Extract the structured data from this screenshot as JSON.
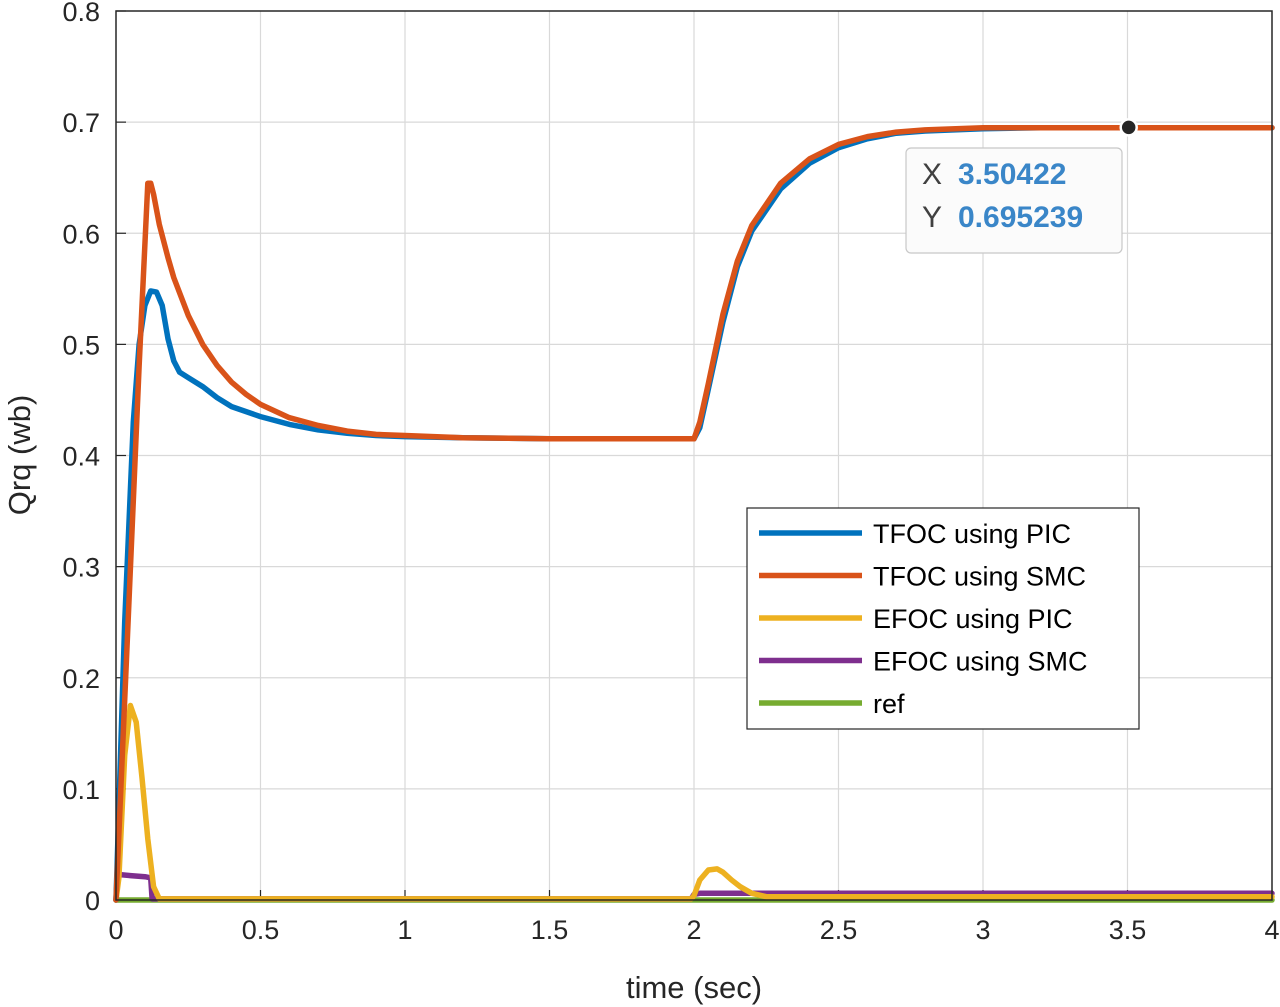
{
  "chart_data": {
    "type": "line",
    "title": "",
    "xlabel": "time (sec)",
    "ylabel": "Qrq (wb)",
    "xlim": [
      0,
      4
    ],
    "ylim": [
      0,
      0.8
    ],
    "xticks": [
      0,
      0.5,
      1,
      1.5,
      2,
      2.5,
      3,
      3.5,
      4
    ],
    "xtick_labels": [
      "0",
      "0.5",
      "1",
      "1.5",
      "2",
      "2.5",
      "3",
      "3.5",
      "4"
    ],
    "yticks": [
      0,
      0.1,
      0.2,
      0.3,
      0.4,
      0.5,
      0.6,
      0.7,
      0.8
    ],
    "ytick_labels": [
      "0",
      "0.1",
      "0.2",
      "0.3",
      "0.4",
      "0.5",
      "0.6",
      "0.7",
      "0.8"
    ],
    "grid": true,
    "legend_position": "center-right",
    "series": [
      {
        "name": "TFOC using PIC",
        "color": "#0072bd",
        "x": [
          0,
          0.03,
          0.06,
          0.08,
          0.1,
          0.12,
          0.14,
          0.16,
          0.18,
          0.2,
          0.22,
          0.25,
          0.3,
          0.35,
          0.4,
          0.5,
          0.6,
          0.7,
          0.8,
          0.9,
          1.0,
          1.2,
          1.5,
          1.8,
          2.0,
          2.02,
          2.05,
          2.1,
          2.15,
          2.2,
          2.3,
          2.4,
          2.5,
          2.6,
          2.7,
          2.8,
          3.0,
          3.2,
          3.5,
          3.8,
          4.0
        ],
        "y": [
          0,
          0.25,
          0.43,
          0.5,
          0.535,
          0.548,
          0.547,
          0.535,
          0.505,
          0.485,
          0.475,
          0.47,
          0.462,
          0.452,
          0.444,
          0.435,
          0.428,
          0.423,
          0.42,
          0.418,
          0.417,
          0.416,
          0.415,
          0.415,
          0.415,
          0.425,
          0.46,
          0.52,
          0.57,
          0.602,
          0.64,
          0.663,
          0.677,
          0.685,
          0.69,
          0.692,
          0.694,
          0.695,
          0.695,
          0.695,
          0.695
        ]
      },
      {
        "name": "TFOC using SMC",
        "color": "#d95319",
        "x": [
          0,
          0.04,
          0.08,
          0.11,
          0.12,
          0.13,
          0.15,
          0.18,
          0.2,
          0.25,
          0.3,
          0.35,
          0.4,
          0.45,
          0.5,
          0.6,
          0.7,
          0.8,
          0.9,
          1.0,
          1.2,
          1.5,
          1.8,
          2.0,
          2.02,
          2.05,
          2.1,
          2.15,
          2.2,
          2.3,
          2.4,
          2.5,
          2.6,
          2.7,
          2.8,
          3.0,
          3.2,
          3.5,
          3.8,
          4.0
        ],
        "y": [
          0,
          0.24,
          0.48,
          0.645,
          0.645,
          0.635,
          0.608,
          0.578,
          0.56,
          0.526,
          0.5,
          0.481,
          0.466,
          0.455,
          0.446,
          0.434,
          0.427,
          0.422,
          0.419,
          0.418,
          0.416,
          0.415,
          0.415,
          0.415,
          0.43,
          0.465,
          0.527,
          0.575,
          0.607,
          0.645,
          0.667,
          0.68,
          0.687,
          0.691,
          0.693,
          0.695,
          0.695,
          0.695,
          0.695,
          0.695
        ]
      },
      {
        "name": "EFOC using PIC",
        "color": "#edb120",
        "x": [
          0,
          0.01,
          0.03,
          0.05,
          0.07,
          0.09,
          0.11,
          0.13,
          0.15,
          0.2,
          1.0,
          1.99,
          2.0,
          2.02,
          2.05,
          2.08,
          2.1,
          2.13,
          2.16,
          2.2,
          2.25,
          2.3,
          3.0,
          4.0
        ],
        "y": [
          0,
          0.02,
          0.13,
          0.175,
          0.16,
          0.11,
          0.055,
          0.012,
          0.001,
          0.001,
          0.001,
          0.001,
          0.004,
          0.018,
          0.027,
          0.028,
          0.025,
          0.018,
          0.012,
          0.006,
          0.003,
          0.003,
          0.003,
          0.003
        ]
      },
      {
        "name": "EFOC using SMC",
        "color": "#7e2f8e",
        "x": [
          0,
          0.005,
          0.05,
          0.1,
          0.12,
          0.125,
          0.2,
          1.0,
          1.99,
          2.0,
          2.02,
          3.0,
          4.0
        ],
        "y": [
          0,
          0.023,
          0.022,
          0.021,
          0.02,
          0.001,
          0.001,
          0.001,
          0.001,
          0.005,
          0.006,
          0.006,
          0.006
        ]
      },
      {
        "name": "ref",
        "color": "#77ac30",
        "x": [
          0,
          4
        ],
        "y": [
          0,
          0
        ]
      }
    ],
    "datatip": {
      "x_label": "X",
      "x_value": "3.50422",
      "y_label": "Y",
      "y_value": "0.695239",
      "point": [
        3.50422,
        0.695239
      ]
    }
  }
}
